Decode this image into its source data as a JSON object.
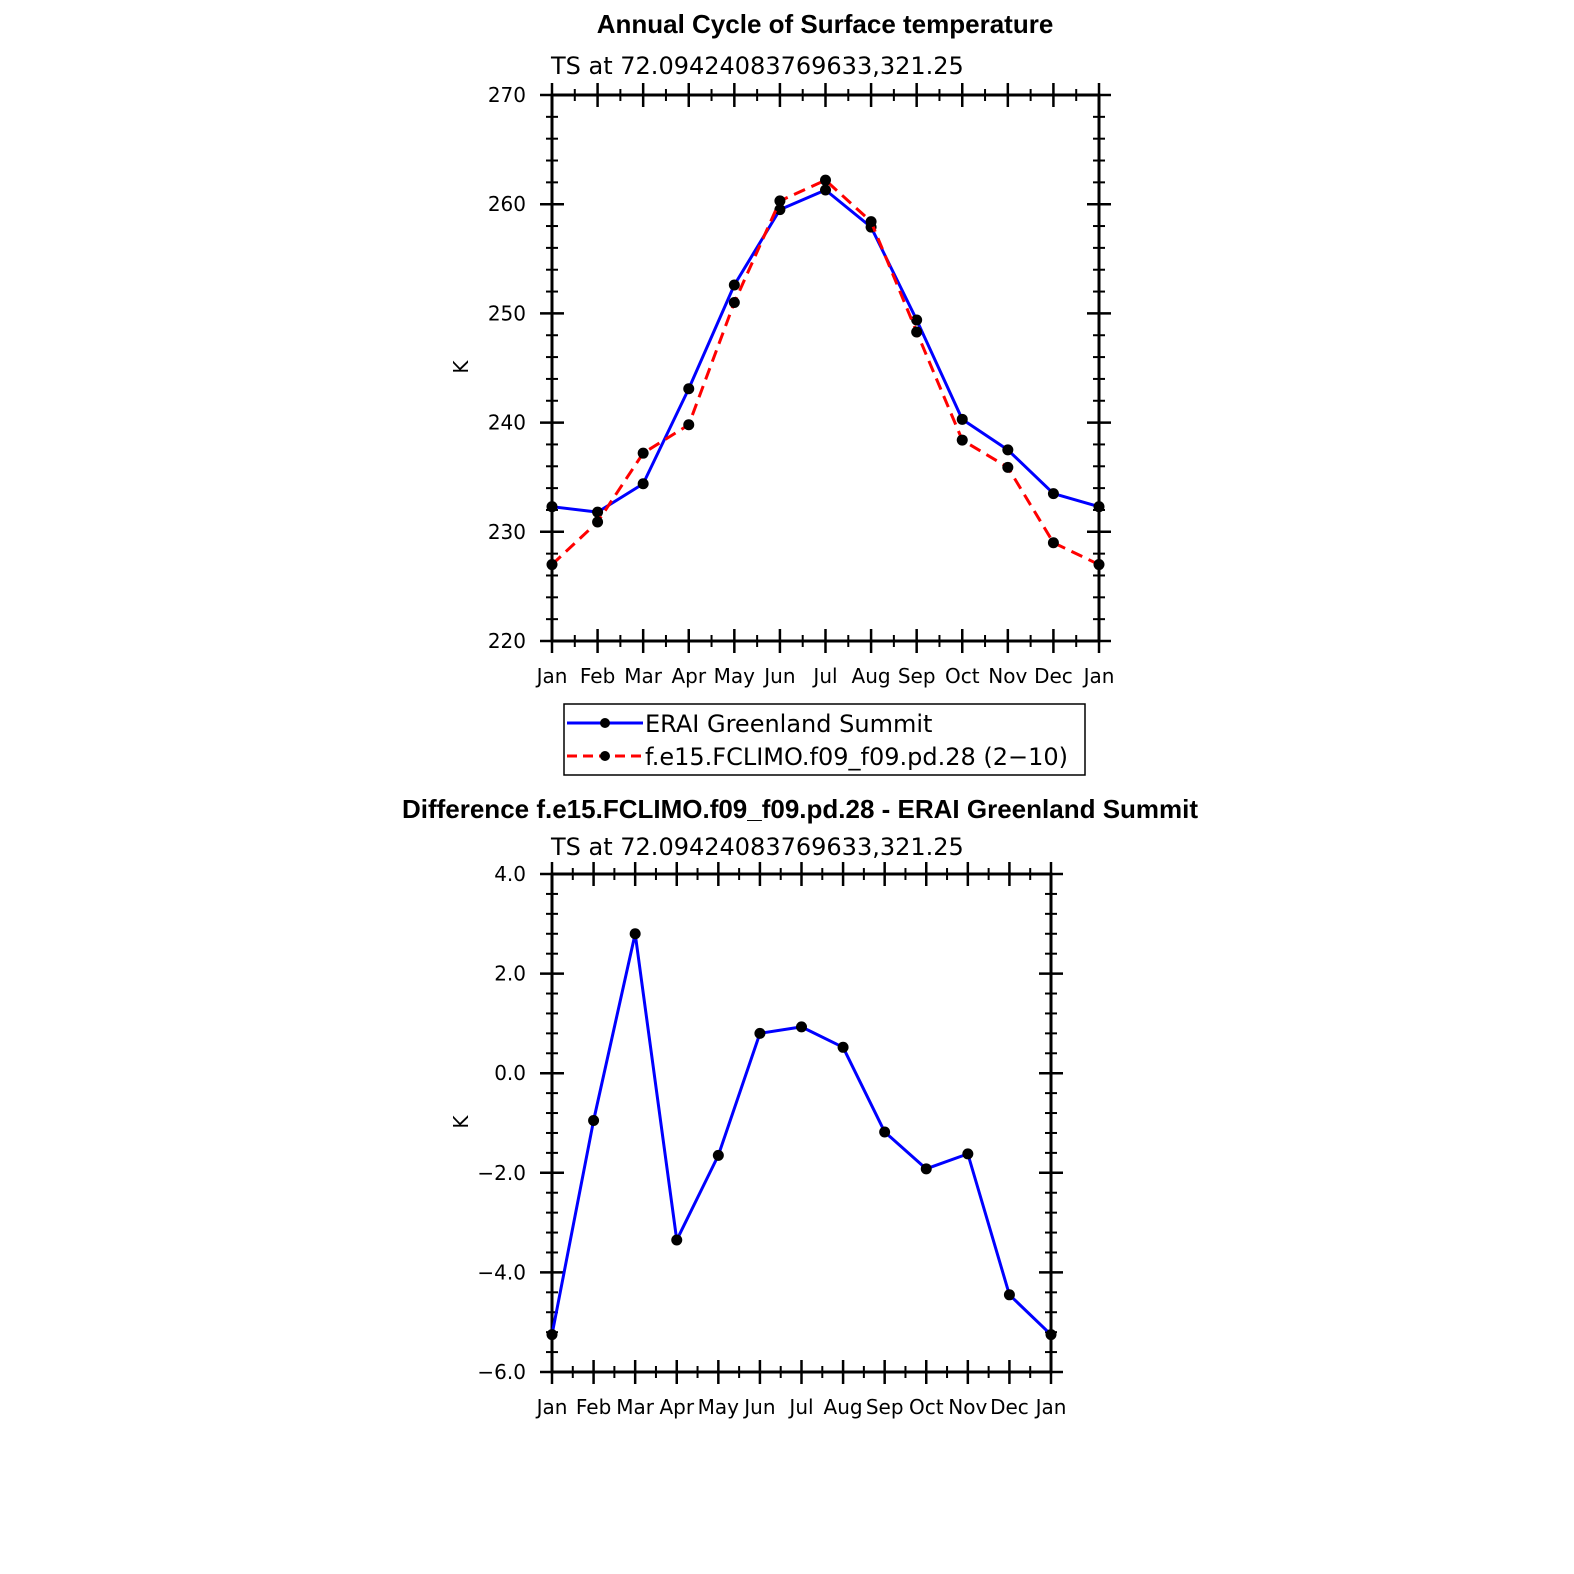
{
  "colors": {
    "erai": "#0000ff",
    "model": "#ff0000",
    "marker": "#000000",
    "axis": "#000000"
  },
  "chart_data": [
    {
      "type": "line",
      "title": "Annual Cycle of Surface temperature",
      "subtitle": "TS at 72.09424083769633,321.25",
      "xlabel": "",
      "ylabel": "K",
      "categories": [
        "Jan",
        "Feb",
        "Mar",
        "Apr",
        "May",
        "Jun",
        "Jul",
        "Aug",
        "Sep",
        "Oct",
        "Nov",
        "Dec",
        "Jan"
      ],
      "ylim": [
        220,
        270
      ],
      "yticks": [
        "220",
        "230",
        "240",
        "250",
        "260",
        "270"
      ],
      "grid": false,
      "legend_position": "bottom",
      "series": [
        {
          "name": "ERAI Greenland Summit",
          "style": "solid",
          "values": [
            232.3,
            231.8,
            234.4,
            243.1,
            252.6,
            259.5,
            261.3,
            257.9,
            249.4,
            240.3,
            237.5,
            233.5,
            232.3
          ]
        },
        {
          "name": "f.e15.FCLIMO.f09_f09.pd.28 (2−10)",
          "style": "dashed",
          "values": [
            227.0,
            230.9,
            237.2,
            239.8,
            251.0,
            260.3,
            262.2,
            258.4,
            248.3,
            238.4,
            235.9,
            229.0,
            227.0
          ]
        }
      ]
    },
    {
      "type": "line",
      "title": "Difference f.e15.FCLIMO.f09_f09.pd.28 - ERAI Greenland Summit",
      "subtitle": "TS at 72.09424083769633,321.25",
      "xlabel": "",
      "ylabel": "K",
      "categories": [
        "Jan",
        "Feb",
        "Mar",
        "Apr",
        "May",
        "Jun",
        "Jul",
        "Aug",
        "Sep",
        "Oct",
        "Nov",
        "Dec",
        "Jan"
      ],
      "ylim": [
        -6,
        4
      ],
      "yticks": [
        "−6.0",
        "−4.0",
        "−2.0",
        "0.0",
        "2.0",
        "4.0"
      ],
      "grid": false,
      "series": [
        {
          "style": "solid",
          "values": [
            -5.25,
            -0.95,
            2.8,
            -3.35,
            -1.65,
            0.8,
            0.93,
            0.52,
            -1.18,
            -1.92,
            -1.62,
            -4.45,
            -5.25
          ]
        }
      ]
    }
  ]
}
